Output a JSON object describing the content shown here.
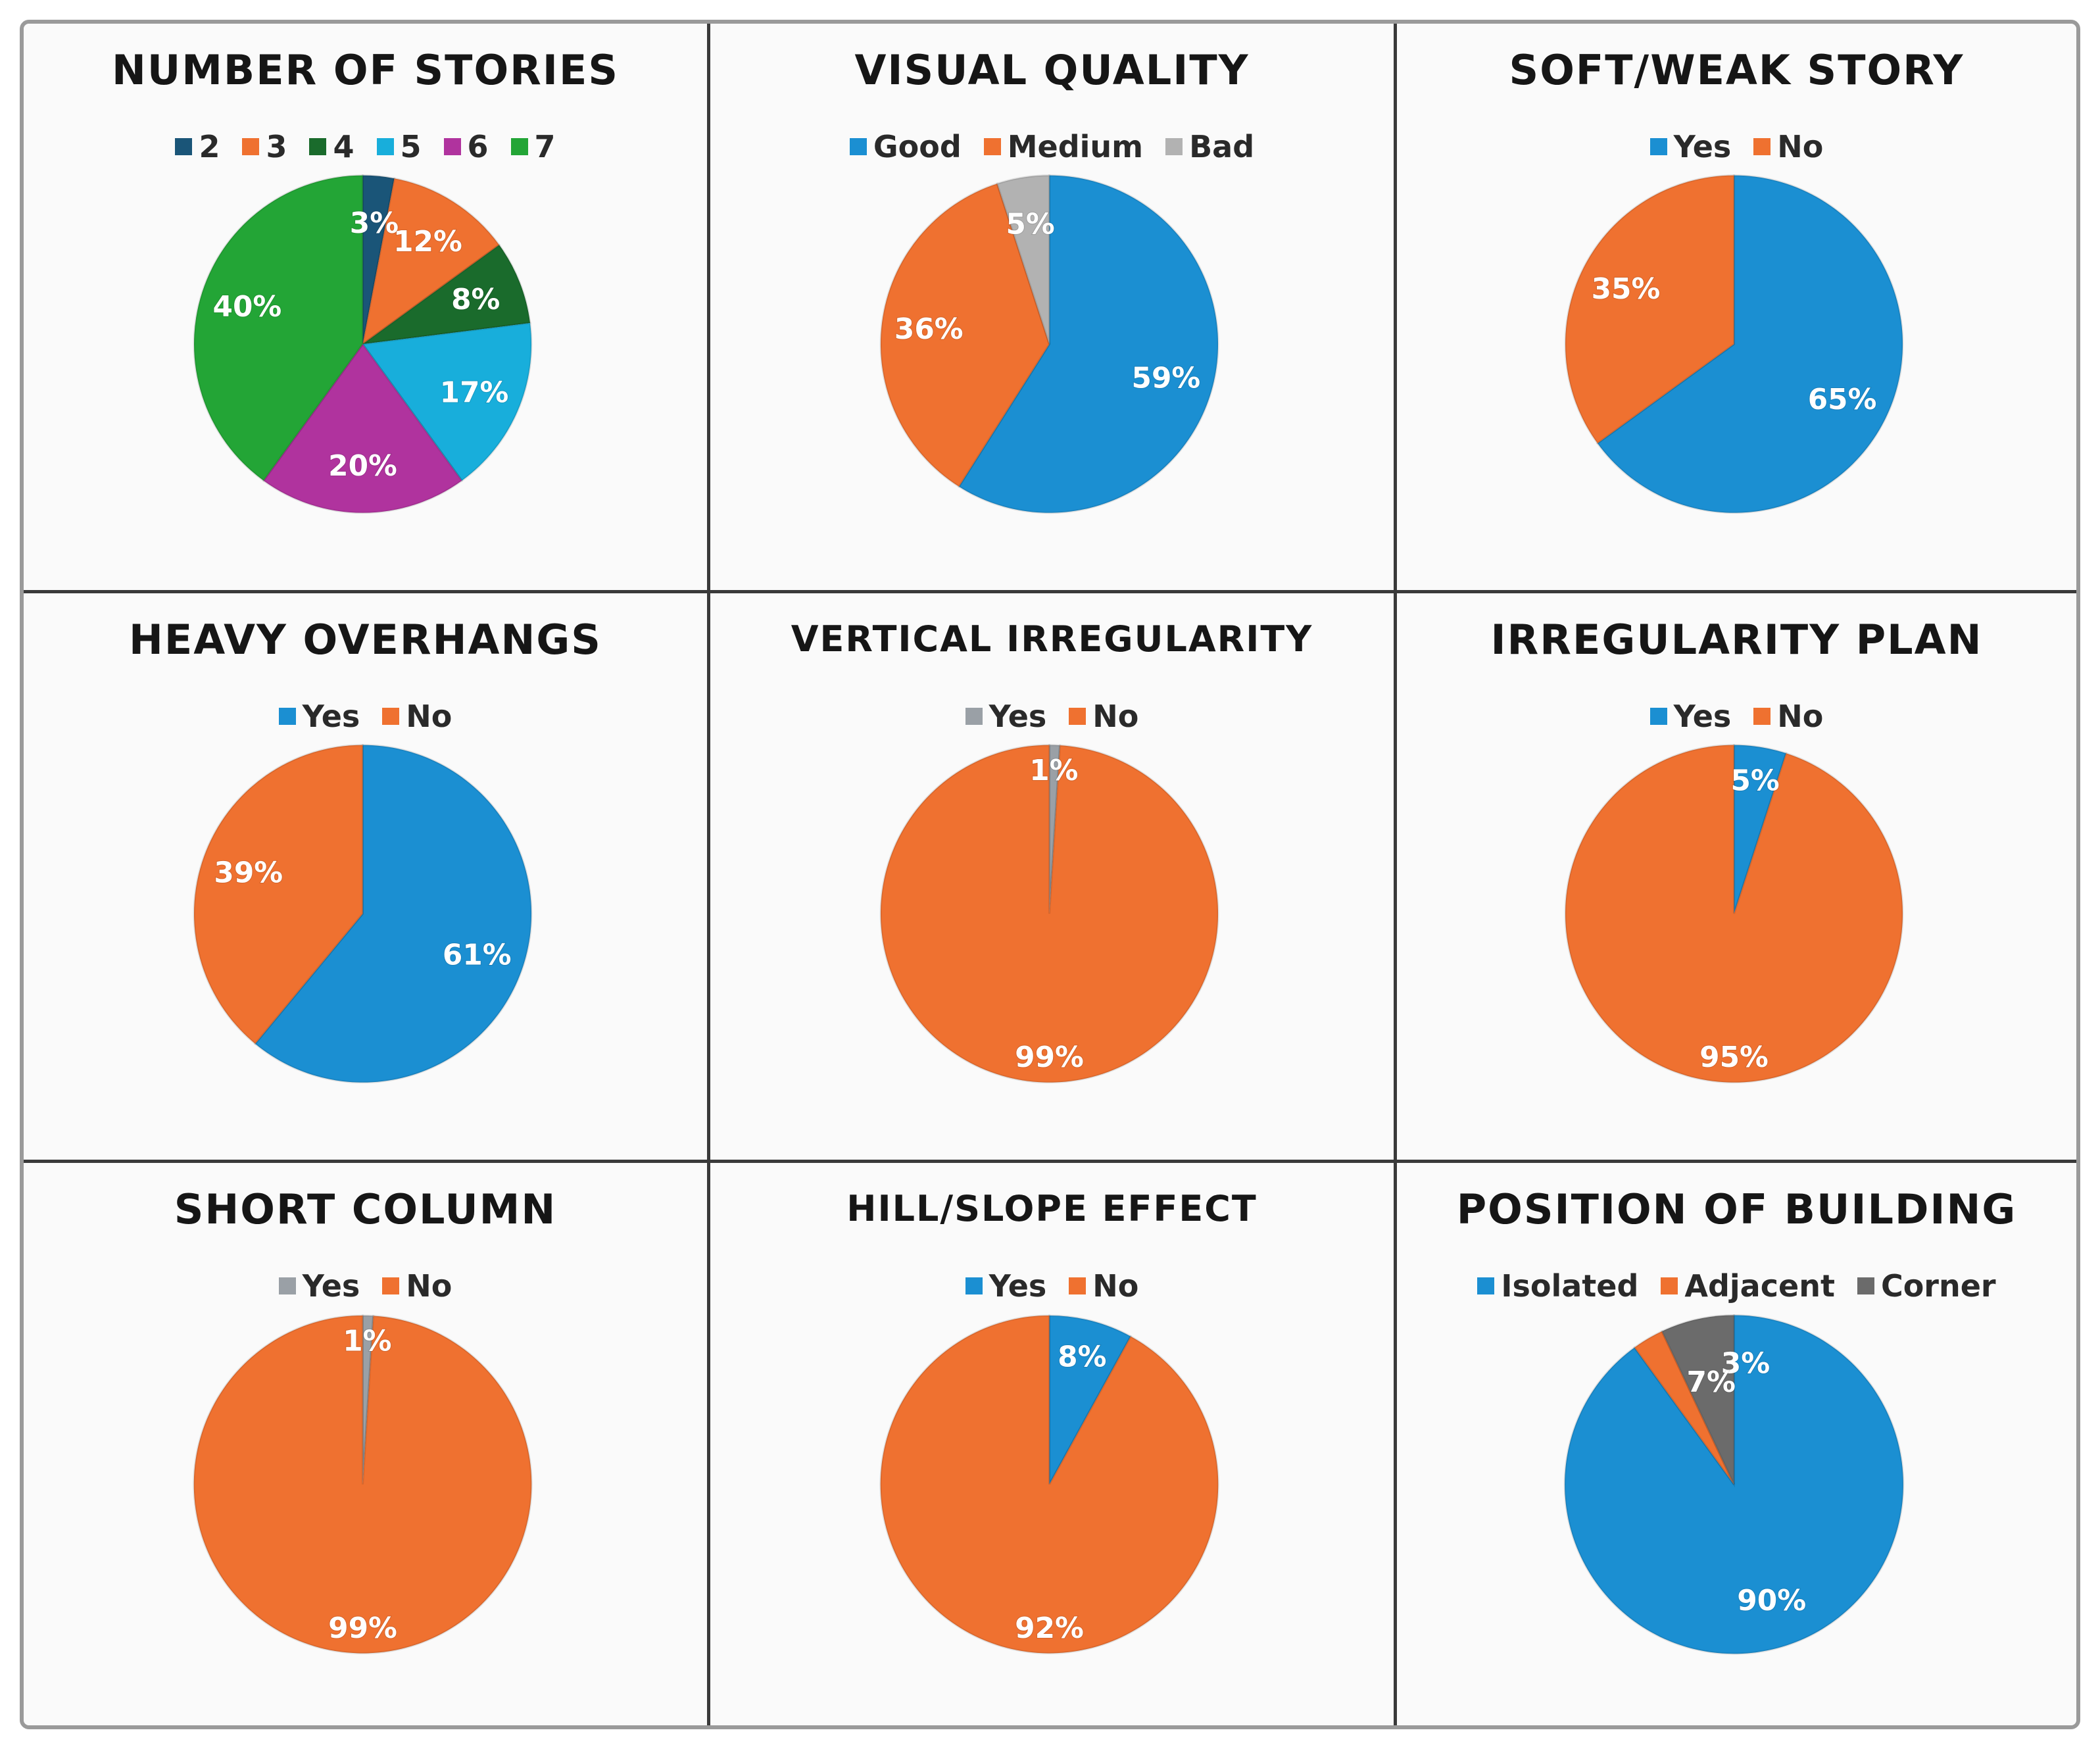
{
  "colors": {
    "blue": "#1b8fd2",
    "orange": "#ef7130",
    "gray_light": "#b2b2b2",
    "gray_dark": "#6b6b6b",
    "navy": "#1a5578",
    "dark_green": "#1a6b2c",
    "cyan": "#18aedb",
    "magenta": "#b0339e",
    "green": "#23a536"
  },
  "chart_data": [
    {
      "type": "pie",
      "title": "NUMBER OF STORIES",
      "labels": [
        "2",
        "3",
        "4",
        "5",
        "6",
        "7"
      ],
      "values": [
        3,
        12,
        8,
        17,
        20,
        40
      ],
      "data_labels": [
        "3%",
        "12%",
        "8%",
        "17%",
        "20%",
        "40%"
      ],
      "colors": [
        "#1a5578",
        "#ef7130",
        "#1a6b2c",
        "#18aedb",
        "#b0339e",
        "#23a536"
      ],
      "legend": "top"
    },
    {
      "type": "pie",
      "title": "VISUAL QUALITY",
      "labels": [
        "Good",
        "Medium",
        "Bad"
      ],
      "values": [
        59,
        36,
        5
      ],
      "data_labels": [
        "59%",
        "36%",
        "5%"
      ],
      "colors": [
        "#1b8fd2",
        "#ef7130",
        "#b2b2b2"
      ],
      "legend": "top"
    },
    {
      "type": "pie",
      "title": "SOFT/WEAK STORY",
      "labels": [
        "Yes",
        "No"
      ],
      "values": [
        65,
        35
      ],
      "data_labels": [
        "65%",
        "35%"
      ],
      "colors": [
        "#1b8fd2",
        "#ef7130"
      ],
      "legend": "top"
    },
    {
      "type": "pie",
      "title": "HEAVY OVERHANGS",
      "labels": [
        "Yes",
        "No"
      ],
      "values": [
        61,
        39
      ],
      "data_labels": [
        "61%",
        "39%"
      ],
      "colors": [
        "#1b8fd2",
        "#ef7130"
      ],
      "legend": "top"
    },
    {
      "type": "pie",
      "title": "VERTICAL IRREGULARITY",
      "labels": [
        "Yes",
        "No"
      ],
      "values": [
        1,
        99
      ],
      "data_labels": [
        "1%",
        "99%"
      ],
      "colors": [
        "#9aa0a6",
        "#ef7130"
      ],
      "legend": "top"
    },
    {
      "type": "pie",
      "title": "IRREGULARITY PLAN",
      "labels": [
        "Yes",
        "No"
      ],
      "values": [
        5,
        95
      ],
      "data_labels": [
        "5%",
        "95%"
      ],
      "colors": [
        "#1b8fd2",
        "#ef7130"
      ],
      "legend": "top"
    },
    {
      "type": "pie",
      "title": "SHORT COLUMN",
      "labels": [
        "Yes",
        "No"
      ],
      "values": [
        1,
        99
      ],
      "data_labels": [
        "1%",
        "99%"
      ],
      "colors": [
        "#9aa0a6",
        "#ef7130"
      ],
      "legend": "top"
    },
    {
      "type": "pie",
      "title": "HILL/SLOPE EFFECT",
      "labels": [
        "Yes",
        "No"
      ],
      "values": [
        8,
        92
      ],
      "data_labels": [
        "8%",
        "92%"
      ],
      "colors": [
        "#1b8fd2",
        "#ef7130"
      ],
      "legend": "top"
    },
    {
      "type": "pie",
      "title": "POSITION OF BUILDING",
      "labels": [
        "Isolated",
        "Adjacent",
        "Corner"
      ],
      "values": [
        90,
        3,
        7
      ],
      "data_labels": [
        "90%",
        "3%",
        "7%"
      ],
      "colors": [
        "#1b8fd2",
        "#ef7130",
        "#6b6b6b"
      ],
      "legend": "top"
    }
  ]
}
